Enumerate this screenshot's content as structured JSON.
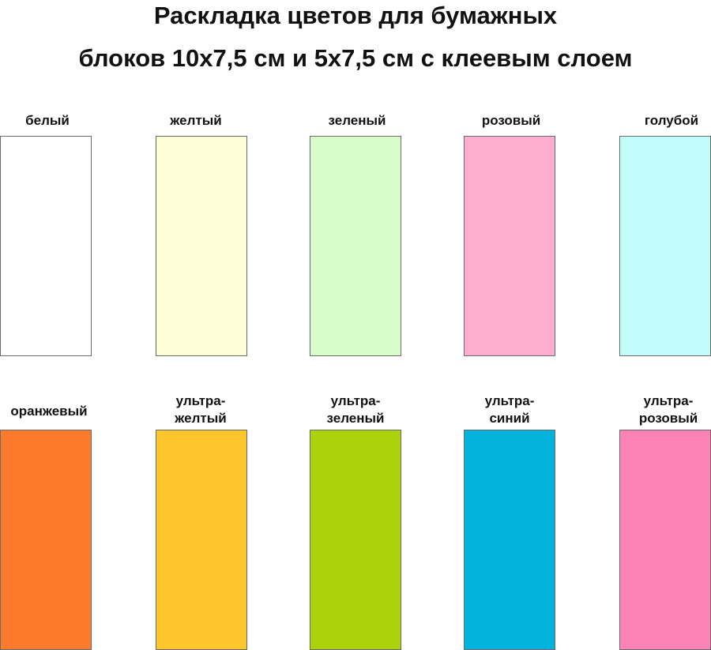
{
  "title": {
    "line1": "Раскладка цветов для бумажных",
    "line2": "блоков 10x7,5 см и 5x7,5 см с клеевым слоем"
  },
  "rows": [
    [
      {
        "label": "белый",
        "color": "#ffffff"
      },
      {
        "label": "желтый",
        "color": "#fdfdd6"
      },
      {
        "label": "зеленый",
        "color": "#d8fdc9"
      },
      {
        "label": "розовый",
        "color": "#fdaed0"
      },
      {
        "label": "голубой",
        "color": "#c1fcfb"
      }
    ],
    [
      {
        "label": "оранжевый",
        "color": "#fb7a2c"
      },
      {
        "label": "ультра-",
        "label2": "желтый",
        "color": "#fdc62d"
      },
      {
        "label": "ультра-",
        "label2": "зеленый",
        "color": "#acd20c"
      },
      {
        "label": "ультра-",
        "label2": "синий",
        "color": "#03b3dd"
      },
      {
        "label": "ультра-",
        "label2": "розовый",
        "color": "#fd83b6"
      }
    ]
  ]
}
